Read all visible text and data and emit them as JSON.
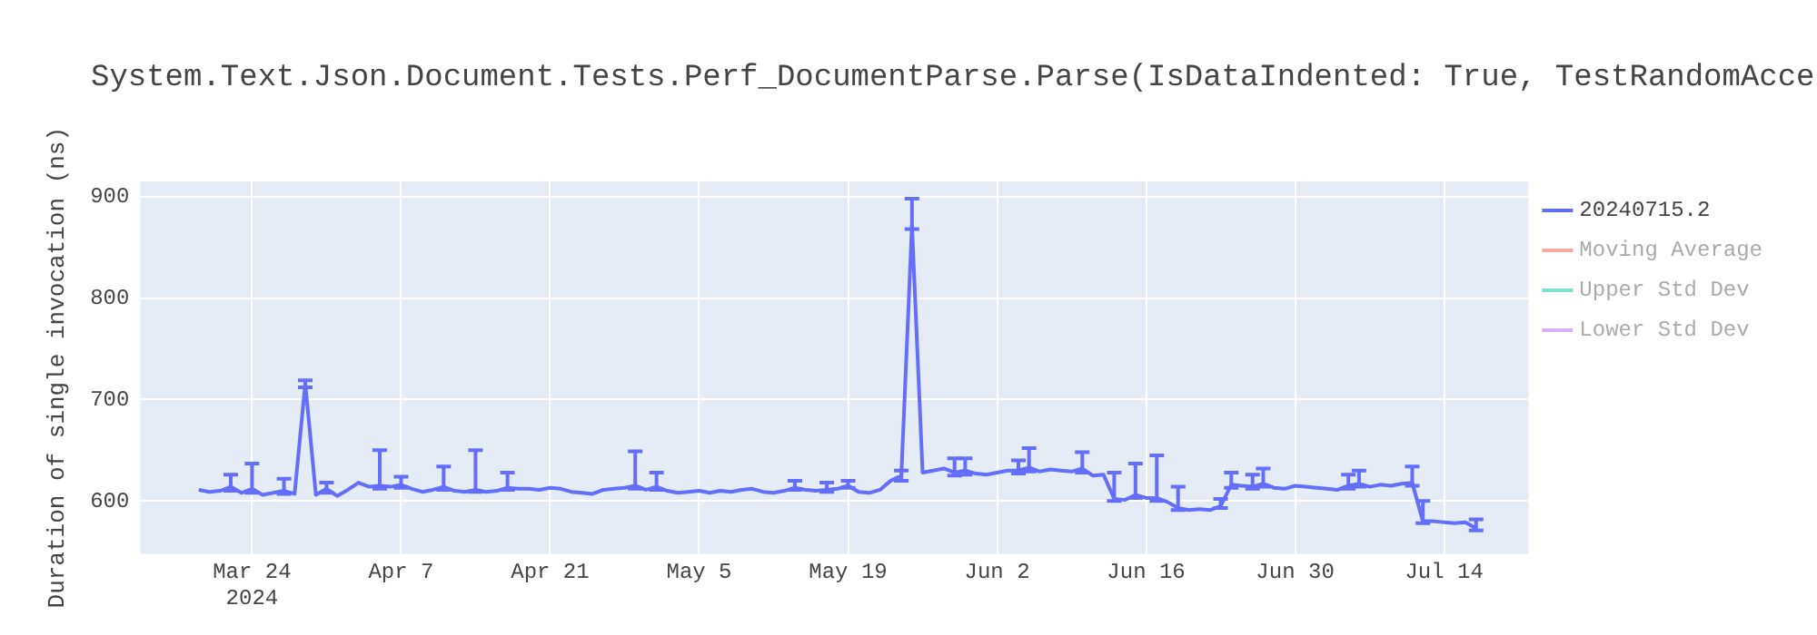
{
  "chart_data": {
    "type": "line",
    "title": "System.Text.Json.Document.Tests.Perf_DocumentParse.Parse(IsDataIndented: True, TestRandomAcce",
    "ylabel": "Duration of single invocation (ns)",
    "x": [
      "2024-03-19",
      "2024-03-20",
      "2024-03-21",
      "2024-03-22",
      "2024-03-23",
      "2024-03-24",
      "2024-03-25",
      "2024-03-26",
      "2024-03-27",
      "2024-03-28",
      "2024-03-29",
      "2024-03-30",
      "2024-03-31",
      "2024-04-01",
      "2024-04-02",
      "2024-04-03",
      "2024-04-04",
      "2024-04-05",
      "2024-04-06",
      "2024-04-07",
      "2024-04-08",
      "2024-04-09",
      "2024-04-10",
      "2024-04-11",
      "2024-04-12",
      "2024-04-13",
      "2024-04-14",
      "2024-04-15",
      "2024-04-16",
      "2024-04-17",
      "2024-04-18",
      "2024-04-19",
      "2024-04-20",
      "2024-04-21",
      "2024-04-22",
      "2024-04-23",
      "2024-04-24",
      "2024-04-25",
      "2024-04-26",
      "2024-04-27",
      "2024-04-28",
      "2024-04-29",
      "2024-04-30",
      "2024-05-01",
      "2024-05-02",
      "2024-05-03",
      "2024-05-04",
      "2024-05-05",
      "2024-05-06",
      "2024-05-07",
      "2024-05-08",
      "2024-05-09",
      "2024-05-10",
      "2024-05-11",
      "2024-05-12",
      "2024-05-13",
      "2024-05-14",
      "2024-05-15",
      "2024-05-16",
      "2024-05-17",
      "2024-05-18",
      "2024-05-19",
      "2024-05-20",
      "2024-05-21",
      "2024-05-22",
      "2024-05-23",
      "2024-05-24",
      "2024-05-25",
      "2024-05-26",
      "2024-05-27",
      "2024-05-28",
      "2024-05-29",
      "2024-05-30",
      "2024-05-31",
      "2024-06-01",
      "2024-06-02",
      "2024-06-03",
      "2024-06-04",
      "2024-06-05",
      "2024-06-06",
      "2024-06-07",
      "2024-06-08",
      "2024-06-09",
      "2024-06-10",
      "2024-06-11",
      "2024-06-12",
      "2024-06-13",
      "2024-06-14",
      "2024-06-15",
      "2024-06-16",
      "2024-06-17",
      "2024-06-18",
      "2024-06-19",
      "2024-06-20",
      "2024-06-21",
      "2024-06-22",
      "2024-06-23",
      "2024-06-24",
      "2024-06-25",
      "2024-06-26",
      "2024-06-27",
      "2024-06-28",
      "2024-06-29",
      "2024-06-30",
      "2024-07-01",
      "2024-07-02",
      "2024-07-03",
      "2024-07-04",
      "2024-07-05",
      "2024-07-06",
      "2024-07-07",
      "2024-07-08",
      "2024-07-09",
      "2024-07-10",
      "2024-07-11",
      "2024-07-12",
      "2024-07-13",
      "2024-07-14",
      "2024-07-15",
      "2024-07-16",
      "2024-07-17"
    ],
    "series": [
      {
        "name": "20240715.2",
        "color": "#636efa",
        "values": [
          611,
          609,
          610,
          614,
          608,
          612,
          606,
          608,
          610,
          607,
          716,
          606,
          612,
          605,
          611,
          618,
          614,
          615,
          614,
          616,
          612,
          609,
          611,
          614,
          610,
          609,
          611,
          609,
          610,
          613,
          612,
          612,
          611,
          613,
          612,
          609,
          608,
          607,
          611,
          612,
          613,
          615,
          611,
          614,
          610,
          608,
          609,
          610,
          608,
          610,
          609,
          611,
          612,
          609,
          608,
          610,
          613,
          611,
          610,
          611,
          612,
          615,
          609,
          608,
          611,
          620,
          625,
          872,
          628,
          630,
          632,
          628,
          630,
          627,
          626,
          628,
          630,
          630,
          633,
          629,
          631,
          630,
          629,
          632,
          625,
          626,
          602,
          601,
          606,
          603,
          603,
          599,
          593,
          591,
          592,
          591,
          595,
          616,
          615,
          614,
          617,
          613,
          612,
          615,
          614,
          613,
          612,
          611,
          615,
          617,
          614,
          616,
          615,
          617,
          618,
          580,
          580,
          579,
          578,
          579,
          573
        ],
        "errors": [
          null,
          null,
          null,
          [
            610,
            626
          ],
          null,
          [
            608,
            637
          ],
          null,
          null,
          [
            607,
            622
          ],
          null,
          [
            712,
            719
          ],
          null,
          [
            608,
            618
          ],
          null,
          null,
          null,
          null,
          [
            612,
            650
          ],
          null,
          [
            613,
            624
          ],
          null,
          null,
          null,
          [
            611,
            634
          ],
          null,
          null,
          [
            609,
            650
          ],
          null,
          null,
          [
            611,
            628
          ],
          null,
          null,
          null,
          null,
          null,
          null,
          null,
          null,
          null,
          null,
          null,
          [
            612,
            649
          ],
          null,
          [
            611,
            628
          ],
          null,
          null,
          null,
          null,
          null,
          null,
          null,
          null,
          null,
          null,
          null,
          null,
          [
            611,
            620
          ],
          null,
          null,
          [
            609,
            618
          ],
          null,
          [
            613,
            620
          ],
          null,
          null,
          null,
          null,
          [
            620,
            630
          ],
          [
            868,
            898
          ],
          null,
          null,
          null,
          [
            625,
            642
          ],
          [
            626,
            642
          ],
          null,
          null,
          null,
          null,
          [
            627,
            640
          ],
          [
            629,
            652
          ],
          null,
          null,
          null,
          null,
          [
            628,
            648
          ],
          null,
          null,
          [
            600,
            628
          ],
          null,
          [
            603,
            637
          ],
          null,
          [
            600,
            645
          ],
          null,
          [
            591,
            614
          ],
          null,
          null,
          null,
          [
            593,
            602
          ],
          [
            613,
            628
          ],
          null,
          [
            612,
            626
          ],
          [
            614,
            632
          ],
          null,
          null,
          null,
          null,
          null,
          null,
          null,
          [
            612,
            626
          ],
          [
            614,
            630
          ],
          null,
          null,
          null,
          null,
          [
            615,
            634
          ],
          [
            578,
            600
          ],
          null,
          null,
          null,
          null,
          [
            571,
            582
          ]
        ]
      },
      {
        "name": "Moving Average",
        "color": "#ef553b",
        "values": [
          null,
          null,
          null,
          null,
          null,
          null,
          null,
          null,
          null,
          null,
          null,
          null,
          null,
          null,
          null,
          null,
          null,
          null,
          null,
          null,
          null,
          null,
          null,
          null,
          null,
          null,
          null,
          null,
          null,
          null,
          null,
          null,
          null,
          null,
          null,
          null,
          null,
          null,
          null,
          null,
          null,
          null,
          null,
          null,
          null,
          null,
          null,
          null,
          null,
          null,
          null,
          null,
          null,
          null,
          null,
          null,
          null,
          null,
          null,
          null,
          null,
          null,
          null,
          null,
          null,
          null,
          null,
          null,
          null,
          null,
          null,
          null,
          null,
          null,
          null,
          null,
          null,
          null,
          null,
          null,
          null,
          null,
          null,
          null,
          null,
          null,
          null,
          null,
          null,
          null,
          null,
          null,
          null,
          null,
          null,
          null,
          null,
          null,
          null,
          null,
          null,
          null,
          null,
          null,
          null,
          null,
          null,
          null,
          null,
          null,
          null,
          null,
          null,
          null,
          null,
          null,
          null,
          null,
          null,
          null,
          null
        ]
      },
      {
        "name": "Upper Std Dev",
        "color": "#00cc96",
        "values": [
          null,
          null,
          null,
          null,
          null,
          null,
          null,
          null,
          null,
          null,
          null,
          null,
          null,
          null,
          null,
          null,
          null,
          null,
          null,
          null,
          null,
          null,
          null,
          null,
          null,
          null,
          null,
          null,
          null,
          null,
          null,
          null,
          null,
          null,
          null,
          null,
          null,
          null,
          null,
          null,
          null,
          null,
          null,
          null,
          null,
          null,
          null,
          null,
          null,
          null,
          null,
          null,
          null,
          null,
          null,
          null,
          null,
          null,
          null,
          null,
          null,
          null,
          null,
          null,
          null,
          null,
          null,
          null,
          null,
          null,
          null,
          null,
          null,
          null,
          null,
          null,
          null,
          null,
          null,
          null,
          null,
          null,
          null,
          null,
          null,
          null,
          null,
          null,
          null,
          null,
          null,
          null,
          null,
          null,
          null,
          null,
          null,
          null,
          null,
          null,
          null,
          null,
          null,
          null,
          null,
          null,
          null,
          null,
          null,
          null,
          null,
          null,
          null,
          null,
          null,
          null,
          null,
          null,
          null,
          null,
          null
        ]
      },
      {
        "name": "Lower Std Dev",
        "color": "#ab63fa",
        "values": [
          null,
          null,
          null,
          null,
          null,
          null,
          null,
          null,
          null,
          null,
          null,
          null,
          null,
          null,
          null,
          null,
          null,
          null,
          null,
          null,
          null,
          null,
          null,
          null,
          null,
          null,
          null,
          null,
          null,
          null,
          null,
          null,
          null,
          null,
          null,
          null,
          null,
          null,
          null,
          null,
          null,
          null,
          null,
          null,
          null,
          null,
          null,
          null,
          null,
          null,
          null,
          null,
          null,
          null,
          null,
          null,
          null,
          null,
          null,
          null,
          null,
          null,
          null,
          null,
          null,
          null,
          null,
          null,
          null,
          null,
          null,
          null,
          null,
          null,
          null,
          null,
          null,
          null,
          null,
          null,
          null,
          null,
          null,
          null,
          null,
          null,
          null,
          null,
          null,
          null,
          null,
          null,
          null,
          null,
          null,
          null,
          null,
          null,
          null,
          null,
          null,
          null,
          null,
          null,
          null,
          null,
          null,
          null,
          null,
          null,
          null,
          null,
          null,
          null,
          null,
          null,
          null,
          null,
          null,
          null,
          null
        ]
      }
    ],
    "xlim": [
      "2024-03-13T12:00",
      "2024-07-21T22:00"
    ],
    "xticks": [
      {
        "value": "2024-03-24",
        "label": "Mar 24\n2024"
      },
      {
        "value": "2024-04-07",
        "label": "Apr 7"
      },
      {
        "value": "2024-04-21",
        "label": "Apr 21"
      },
      {
        "value": "2024-05-05",
        "label": "May 5"
      },
      {
        "value": "2024-05-19",
        "label": "May 19"
      },
      {
        "value": "2024-06-02",
        "label": "Jun 2"
      },
      {
        "value": "2024-06-16",
        "label": "Jun 16"
      },
      {
        "value": "2024-06-30",
        "label": "Jun 30"
      },
      {
        "value": "2024-07-14",
        "label": "Jul 14"
      }
    ],
    "ylim": [
      548,
      915
    ],
    "yticks": [
      600,
      700,
      800,
      900
    ],
    "grid": true,
    "legend": "top right"
  }
}
